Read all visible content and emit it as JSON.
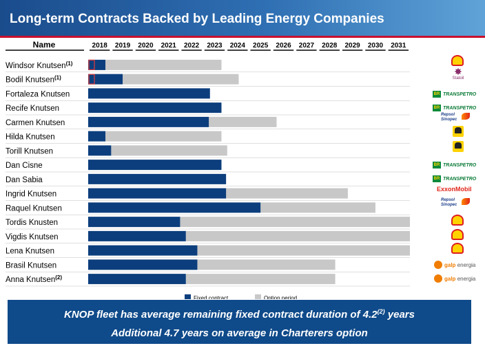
{
  "page": {
    "title": "Long-term Contracts Backed by Leading Energy Companies"
  },
  "chart_data": {
    "type": "bar",
    "orientation": "horizontal-stacked",
    "name_header": "Name",
    "years": [
      "2018",
      "2019",
      "2020",
      "2021",
      "2022",
      "2023",
      "2024",
      "2025",
      "2026",
      "2027",
      "2028",
      "2029",
      "2030",
      "2031"
    ],
    "x_start": 2018.0,
    "x_end": 2032.0,
    "legend": {
      "fixed": "Fixed contract",
      "option": "Option period",
      "placement": "bottom-center"
    },
    "colors": {
      "fixed": "#0c3e7d",
      "option": "#c8c8c8",
      "marker": "#e23b3b"
    },
    "vessels": [
      {
        "name": "Windsor Knutsen",
        "note": "(1)",
        "fixed_start": 2018.0,
        "fixed_end": 2018.75,
        "option_end": 2023.8,
        "marker": true,
        "charterer": "Shell"
      },
      {
        "name": "Bodil Knutsen",
        "note": "(1)",
        "fixed_start": 2018.0,
        "fixed_end": 2019.5,
        "option_end": 2024.55,
        "marker": true,
        "charterer": "Statoil"
      },
      {
        "name": "Fortaleza Knutsen",
        "note": "",
        "fixed_start": 2018.0,
        "fixed_end": 2023.3,
        "option_end": 2023.3,
        "marker": false,
        "charterer": "Transpetro"
      },
      {
        "name": "Recife Knutsen",
        "note": "",
        "fixed_start": 2018.0,
        "fixed_end": 2023.8,
        "option_end": 2023.8,
        "marker": false,
        "charterer": "Transpetro"
      },
      {
        "name": "Carmen Knutsen",
        "note": "",
        "fixed_start": 2018.0,
        "fixed_end": 2023.25,
        "option_end": 2026.2,
        "marker": false,
        "charterer": "Repsol Sinopec"
      },
      {
        "name": "Hilda Knutsen",
        "note": "",
        "fixed_start": 2018.0,
        "fixed_end": 2018.75,
        "option_end": 2023.8,
        "marker": false,
        "charterer": "eni"
      },
      {
        "name": "Torill Knutsen",
        "note": "",
        "fixed_start": 2018.0,
        "fixed_end": 2019.0,
        "option_end": 2024.05,
        "marker": false,
        "charterer": "eni"
      },
      {
        "name": "Dan Cisne",
        "note": "",
        "fixed_start": 2018.0,
        "fixed_end": 2023.8,
        "option_end": 2023.8,
        "marker": false,
        "charterer": "Transpetro"
      },
      {
        "name": "Dan Sabia",
        "note": "",
        "fixed_start": 2018.0,
        "fixed_end": 2024.0,
        "option_end": 2024.0,
        "marker": false,
        "charterer": "Transpetro"
      },
      {
        "name": "Ingrid Knutsen",
        "note": "",
        "fixed_start": 2018.0,
        "fixed_end": 2024.0,
        "option_end": 2029.3,
        "marker": false,
        "charterer": "ExxonMobil"
      },
      {
        "name": "Raquel Knutsen",
        "note": "",
        "fixed_start": 2018.0,
        "fixed_end": 2025.5,
        "option_end": 2030.5,
        "marker": false,
        "charterer": "Repsol Sinopec"
      },
      {
        "name": "Tordis Knusten",
        "note": "",
        "fixed_start": 2018.0,
        "fixed_end": 2022.0,
        "option_end": 2032.0,
        "marker": false,
        "charterer": "Shell"
      },
      {
        "name": "Vigdis Knutsen",
        "note": "",
        "fixed_start": 2018.0,
        "fixed_end": 2022.25,
        "option_end": 2032.0,
        "marker": false,
        "charterer": "Shell"
      },
      {
        "name": "Lena Knutsen",
        "note": "",
        "fixed_start": 2018.0,
        "fixed_end": 2022.75,
        "option_end": 2032.0,
        "marker": false,
        "charterer": "Shell"
      },
      {
        "name": "Brasil Knutsen",
        "note": "",
        "fixed_start": 2018.0,
        "fixed_end": 2022.75,
        "option_end": 2028.75,
        "marker": false,
        "charterer": "galp energia"
      },
      {
        "name": "Anna Knutsen",
        "note": "(2)",
        "fixed_start": 2018.0,
        "fixed_end": 2022.25,
        "option_end": 2028.75,
        "marker": false,
        "charterer": "galp energia"
      }
    ]
  },
  "logos": {
    "statoil": "Statoil",
    "transpetro": "TRANSPETRO",
    "transpetro_badge": "BR",
    "repsol_line1": "Repsol",
    "repsol_line2": "Sinopec",
    "exxon": "ExxonMobil",
    "galp_brand": "galp",
    "galp_word": "energia"
  },
  "banner": {
    "line1_main": "KNOP fleet has average remaining fixed contract duration of 4.2",
    "line1_note": "(2)",
    "line1_tail": " years",
    "line2": "Additional 4.7 years on average in Charterers option"
  }
}
